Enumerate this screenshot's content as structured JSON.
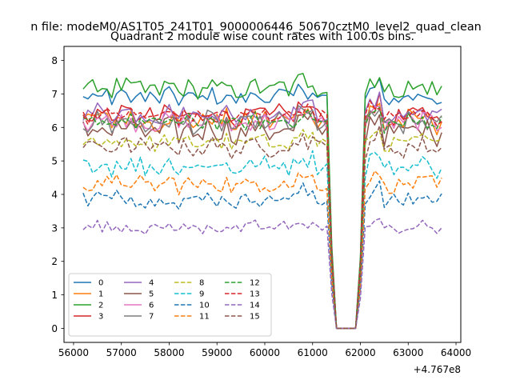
{
  "chart_data": {
    "type": "line",
    "suptitle": "n file: modeM0/AS1T05_241T01_9000006446_50670cztM0_level2_quad_clean",
    "title": "Quadrant 2 module wise count rates with 100.0s bins.",
    "xlabel": "",
    "ylabel": "",
    "offset_text": "+4.767e8",
    "xlim": [
      55800,
      64100
    ],
    "ylim": [
      -0.42,
      8.42
    ],
    "x_ticks": [
      56000,
      57000,
      58000,
      59000,
      60000,
      61000,
      62000,
      63000,
      64000
    ],
    "y_ticks": [
      0,
      1,
      2,
      3,
      4,
      5,
      6,
      7,
      8
    ],
    "x_tick_labels": [
      "56000",
      "57000",
      "58000",
      "59000",
      "60000",
      "61000",
      "62000",
      "63000",
      "64000"
    ],
    "y_tick_labels": [
      "0",
      "1",
      "2",
      "3",
      "4",
      "5",
      "6",
      "7",
      "8"
    ],
    "grid": false,
    "legend_position": "lower-left",
    "x_start": 56200,
    "x_end": 63750,
    "x_step": 100,
    "gap_start": 61450,
    "gap_end": 61950,
    "series": [
      {
        "name": "0",
        "color": "#1f77b4",
        "dash": "solid",
        "level": 6.9,
        "amp": 0.22
      },
      {
        "name": "1",
        "color": "#ff7f0e",
        "dash": "solid",
        "level": 6.2,
        "amp": 0.28
      },
      {
        "name": "2",
        "color": "#2ca02c",
        "dash": "solid",
        "level": 7.15,
        "amp": 0.25
      },
      {
        "name": "3",
        "color": "#d62728",
        "dash": "solid",
        "level": 6.35,
        "amp": 0.25
      },
      {
        "name": "4",
        "color": "#9467bd",
        "dash": "solid",
        "level": 6.4,
        "amp": 0.25
      },
      {
        "name": "5",
        "color": "#8c564b",
        "dash": "solid",
        "level": 5.9,
        "amp": 0.3
      },
      {
        "name": "6",
        "color": "#e377c2",
        "dash": "solid",
        "level": 6.15,
        "amp": 0.25
      },
      {
        "name": "7",
        "color": "#7f7f7f",
        "dash": "solid",
        "level": 6.1,
        "amp": 0.28
      },
      {
        "name": "8",
        "color": "#bcbd22",
        "dash": "dashed",
        "level": 5.55,
        "amp": 0.22
      },
      {
        "name": "9",
        "color": "#17becf",
        "dash": "dashed",
        "level": 4.85,
        "amp": 0.25
      },
      {
        "name": "10",
        "color": "#1f77b4",
        "dash": "dashed",
        "level": 3.85,
        "amp": 0.22
      },
      {
        "name": "11",
        "color": "#ff7f0e",
        "dash": "dashed",
        "level": 4.3,
        "amp": 0.22
      },
      {
        "name": "12",
        "color": "#2ca02c",
        "dash": "dashed",
        "level": 6.15,
        "amp": 0.22
      },
      {
        "name": "13",
        "color": "#d62728",
        "dash": "dashed",
        "level": 6.35,
        "amp": 0.22
      },
      {
        "name": "14",
        "color": "#9467bd",
        "dash": "dashed",
        "level": 3.0,
        "amp": 0.17
      },
      {
        "name": "15",
        "color": "#8c564b",
        "dash": "dashed",
        "level": 5.4,
        "amp": 0.25
      }
    ]
  }
}
